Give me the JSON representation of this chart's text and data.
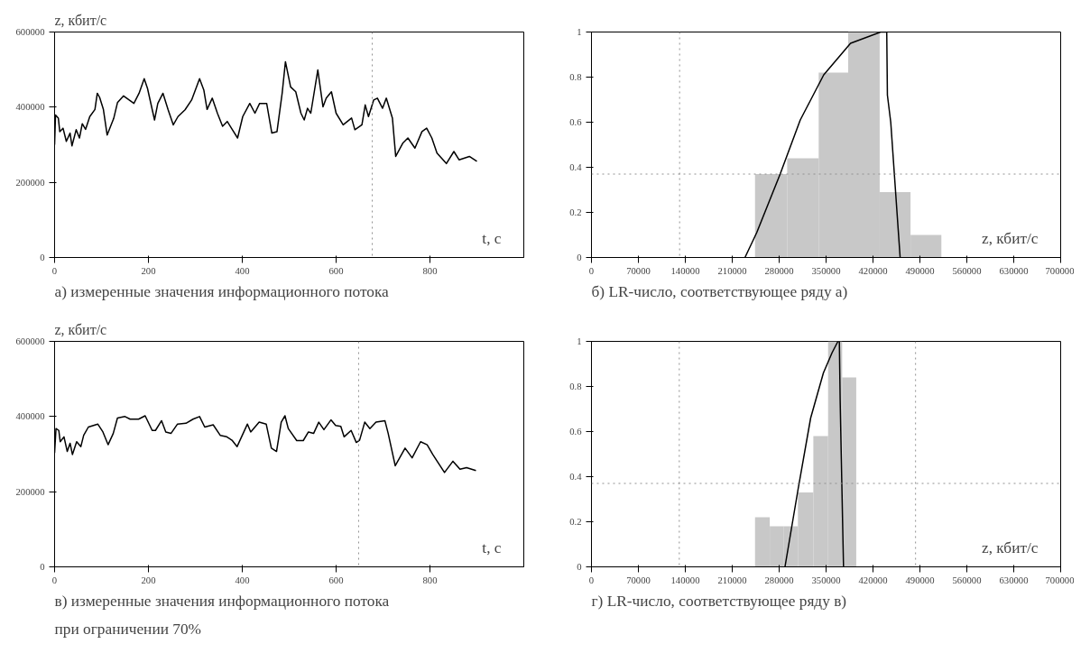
{
  "chart_data": [
    {
      "type": "line",
      "title": "а) измеренные значения информационного потока",
      "ylabel": "z, кбит/с",
      "xlabel": "t, с",
      "xlim": [
        0,
        1000
      ],
      "ylim": [
        0,
        600000
      ],
      "xticks": [
        0,
        200,
        400,
        600,
        800
      ],
      "yticks": [
        0,
        200000,
        400000,
        600000
      ],
      "grid": false,
      "marker": "none",
      "line_style": "solid",
      "ref_lines": [
        {
          "axis": "x",
          "value": 677,
          "color": "#909090",
          "line_style": "dotted"
        }
      ],
      "series": [
        {
          "color": "#000000",
          "x": [
            0,
            2,
            8,
            11,
            18,
            25,
            33,
            37,
            46,
            53,
            59,
            66,
            75,
            86,
            91,
            96,
            104,
            112,
            126,
            134,
            147,
            169,
            180,
            191,
            198,
            213,
            220,
            231,
            242,
            253,
            263,
            278,
            292,
            309,
            318,
            325,
            336,
            347,
            358,
            368,
            379,
            390,
            401,
            416,
            427,
            437,
            452,
            463,
            474,
            485,
            492,
            503,
            514,
            525,
            532,
            539,
            546,
            561,
            572,
            579,
            590,
            600,
            615,
            633,
            640,
            655,
            662,
            669,
            680,
            688,
            699,
            707,
            720,
            727,
            742,
            753,
            768,
            783,
            793,
            804,
            815,
            835,
            851,
            862,
            884,
            900
          ],
          "values": [
            300000,
            379000,
            371000,
            335000,
            344000,
            309000,
            331000,
            297000,
            340000,
            318000,
            356000,
            341000,
            375000,
            394000,
            437000,
            426000,
            394000,
            326000,
            370000,
            412000,
            430000,
            410000,
            437000,
            476000,
            450000,
            366000,
            410000,
            437000,
            393000,
            353000,
            375000,
            393000,
            419000,
            476000,
            446000,
            394000,
            424000,
            384000,
            349000,
            362000,
            340000,
            318000,
            375000,
            410000,
            384000,
            410000,
            410000,
            331000,
            335000,
            437000,
            521000,
            454000,
            441000,
            384000,
            366000,
            397000,
            384000,
            499000,
            401000,
            424000,
            441000,
            384000,
            353000,
            371000,
            340000,
            353000,
            406000,
            375000,
            419000,
            424000,
            397000,
            424000,
            371000,
            269000,
            304000,
            318000,
            291000,
            335000,
            344000,
            318000,
            278000,
            250000,
            282000,
            260000,
            269000,
            256000
          ]
        }
      ]
    },
    {
      "type": "histogram",
      "title": "б) LR-число, соответствующее ряду а)",
      "xlabel": "z, кбит/с",
      "xlim": [
        0,
        700000
      ],
      "ylim": [
        0,
        1
      ],
      "xticks": [
        0,
        70000,
        140000,
        210000,
        280000,
        350000,
        420000,
        490000,
        560000,
        630000,
        700000
      ],
      "yticks": [
        0,
        0.2,
        0.4,
        0.6,
        0.8,
        1
      ],
      "grid": false,
      "bins": [
        244000,
        292000,
        339000,
        383000,
        430000,
        476000,
        522000
      ],
      "values": [
        0.37,
        0.44,
        0.82,
        1.0,
        0.29,
        0.1
      ],
      "color": "#c8c8c8",
      "ref_lines": [
        {
          "axis": "y",
          "value": 0.37,
          "color": "#909090",
          "line_style": "dotted"
        },
        {
          "axis": "x",
          "value": 131500,
          "color": "#909090",
          "line_style": "dotted"
        }
      ],
      "series": [
        {
          "type": "line",
          "color": "#000000",
          "x": [
            229000,
            246500,
            281500,
            311500,
            346500,
            386500,
            431500,
            440500,
            441500,
            446500,
            460500
          ],
          "values": [
            0,
            0.11,
            0.37,
            0.61,
            0.81,
            0.95,
            1.0,
            1.0,
            0.72,
            0.6,
            0
          ]
        }
      ]
    },
    {
      "type": "line",
      "title": "в) измеренные значения информационного потока\nпри ограничении 70%",
      "ylabel": "z, кбит/с",
      "xlabel": "t, с",
      "xlim": [
        0,
        1000
      ],
      "ylim": [
        0,
        600000
      ],
      "xticks": [
        0,
        200,
        400,
        600,
        800
      ],
      "yticks": [
        0,
        200000,
        400000,
        600000
      ],
      "grid": false,
      "marker": "none",
      "line_style": "solid",
      "ref_lines": [
        {
          "axis": "x",
          "value": 648,
          "color": "#909090",
          "line_style": "dotted"
        }
      ],
      "series": [
        {
          "color": "#000000",
          "x": [
            0,
            3,
            9,
            12,
            20,
            27,
            33,
            38,
            47,
            56,
            62,
            72,
            92,
            103,
            114,
            125,
            134,
            150,
            161,
            179,
            193,
            208,
            215,
            228,
            237,
            248,
            262,
            280,
            295,
            309,
            320,
            338,
            353,
            367,
            378,
            389,
            411,
            418,
            436,
            451,
            462,
            473,
            483,
            491,
            498,
            516,
            530,
            541,
            552,
            563,
            574,
            589,
            599,
            610,
            617,
            632,
            643,
            650,
            661,
            672,
            685,
            704,
            711,
            726,
            747,
            762,
            780,
            794,
            806,
            831,
            849,
            864,
            878,
            898
          ],
          "values": [
            303000,
            368000,
            363000,
            333000,
            346000,
            307000,
            329000,
            299000,
            333000,
            320000,
            350000,
            372000,
            380000,
            359000,
            325000,
            355000,
            396000,
            400000,
            393000,
            393000,
            402000,
            363000,
            363000,
            389000,
            359000,
            355000,
            380000,
            382000,
            393000,
            400000,
            372000,
            378000,
            350000,
            346000,
            337000,
            320000,
            380000,
            359000,
            385000,
            380000,
            316000,
            307000,
            385000,
            402000,
            368000,
            336000,
            336000,
            359000,
            355000,
            385000,
            365000,
            391000,
            376000,
            374000,
            346000,
            363000,
            331000,
            337000,
            385000,
            368000,
            385000,
            389000,
            355000,
            269000,
            316000,
            290000,
            333000,
            325000,
            299000,
            251000,
            281000,
            260000,
            264000,
            256000
          ]
        }
      ]
    },
    {
      "type": "histogram",
      "title": "г) LR-число, соответствующее ряду в)",
      "xlabel": "z, кбит/с",
      "xlim": [
        0,
        700000
      ],
      "ylim": [
        0,
        1
      ],
      "xticks": [
        0,
        70000,
        140000,
        210000,
        280000,
        350000,
        420000,
        490000,
        560000,
        630000,
        700000
      ],
      "yticks": [
        0,
        0.2,
        0.4,
        0.6,
        0.8,
        1
      ],
      "grid": false,
      "bins": [
        244000,
        266000,
        287000,
        308000,
        331000,
        353000,
        374000,
        395000
      ],
      "values": [
        0.22,
        0.18,
        0.18,
        0.33,
        0.58,
        1.0,
        0.84
      ],
      "color": "#c8c8c8",
      "ref_lines": [
        {
          "axis": "y",
          "value": 0.37,
          "color": "#909090",
          "line_style": "dotted"
        },
        {
          "axis": "x",
          "value": 131000,
          "color": "#909090",
          "line_style": "dotted"
        },
        {
          "axis": "x",
          "value": 483500,
          "color": "#909090",
          "line_style": "dotted"
        }
      ],
      "series": [
        {
          "type": "line",
          "color": "#000000",
          "x": [
            288700,
            308000,
            327000,
            346000,
            359000,
            367700,
            369800,
            371000,
            376000
          ],
          "values": [
            0,
            0.34,
            0.66,
            0.86,
            0.95,
            1.0,
            1.0,
            0.74,
            0
          ]
        }
      ]
    }
  ]
}
